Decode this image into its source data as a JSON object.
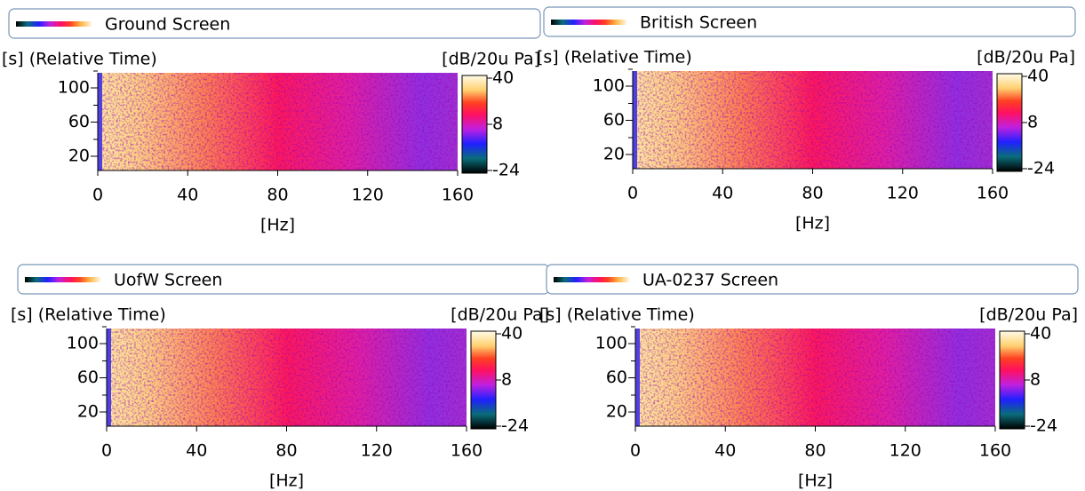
{
  "panels": [
    {
      "title": "Ground Screen",
      "y_label": "[s] (Relative Time)",
      "unit_label": "[dB/20u Pa]",
      "x_label": "[Hz]",
      "x_ticks": [
        0,
        40,
        80,
        120,
        160
      ],
      "y_ticks": [
        20,
        60,
        100
      ],
      "colorbar_ticks": [
        40,
        8,
        -24
      ]
    },
    {
      "title": "British Screen",
      "y_label": "[s] (Relative Time)",
      "unit_label": "[dB/20u Pa]",
      "x_label": "[Hz]",
      "x_ticks": [
        0,
        40,
        80,
        120,
        160
      ],
      "y_ticks": [
        20,
        60,
        100
      ],
      "colorbar_ticks": [
        40,
        8,
        -24
      ]
    },
    {
      "title": "UofW Screen",
      "y_label": "[s] (Relative Time)",
      "unit_label": "[dB/20u Pa]",
      "x_label": "[Hz]",
      "x_ticks": [
        0,
        40,
        80,
        120,
        160
      ],
      "y_ticks": [
        20,
        60,
        100
      ],
      "colorbar_ticks": [
        40,
        8,
        -24
      ]
    },
    {
      "title": "UA-0237 Screen",
      "y_label": "[s] (Relative Time)",
      "unit_label": "[dB/20u Pa]",
      "x_label": "[Hz]",
      "x_ticks": [
        0,
        40,
        80,
        120,
        160
      ],
      "y_ticks": [
        20,
        60,
        100
      ],
      "colorbar_ticks": [
        40,
        8,
        -24
      ]
    }
  ]
}
